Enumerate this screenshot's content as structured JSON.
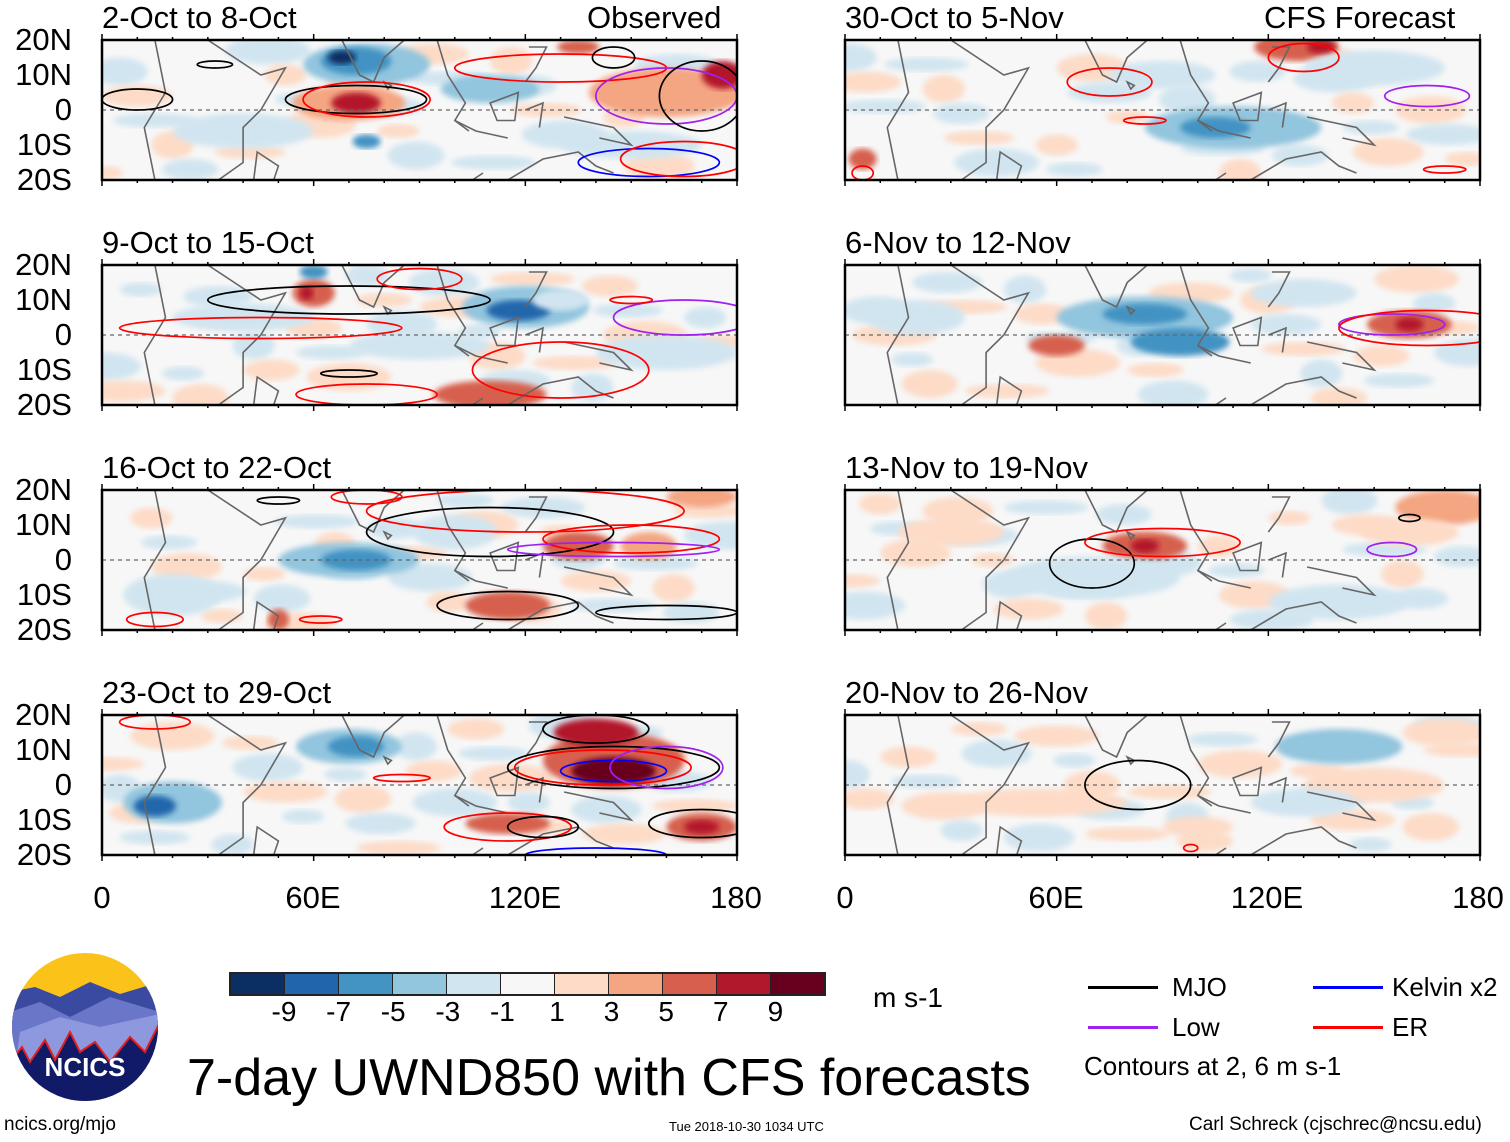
{
  "title": "7-day UWND850 with CFS forecasts",
  "units": "m s-1",
  "left_header": "Observed",
  "right_header": "CFS Forecast",
  "contour_note": "Contours at 2, 6 m s-1",
  "footer": {
    "left": "ncics.org/mjo",
    "center": "Tue 2018-10-30 1034 UTC",
    "right": "Carl Schreck (cjschrec@ncsu.edu)"
  },
  "logo_text": "NCICS",
  "legend": [
    {
      "label": "MJO",
      "color": "#000000"
    },
    {
      "label": "Kelvin x2",
      "color": "#0000ff"
    },
    {
      "label": "Low",
      "color": "#a020f0"
    },
    {
      "label": "ER",
      "color": "#ff0000"
    }
  ],
  "colorbar": {
    "colors": [
      "#0b2f62",
      "#2166ac",
      "#4393c3",
      "#92c5de",
      "#d1e5f0",
      "#f7f7f7",
      "#fddbc7",
      "#f4a582",
      "#d6604d",
      "#b2182b",
      "#67001f"
    ],
    "labels": [
      "-9",
      "-7",
      "-5",
      "-3",
      "-1",
      "1",
      "3",
      "5",
      "7",
      "9"
    ]
  },
  "chart_data": {
    "type": "heatmap",
    "variable": "850-hPa zonal wind anomaly (7-day mean)",
    "x_ticks": [
      "0",
      "60E",
      "120E",
      "180"
    ],
    "y_ticks": [
      "20N",
      "10N",
      "0",
      "10S",
      "20S"
    ],
    "xlim": [
      0,
      180
    ],
    "ylim": [
      -20,
      20
    ],
    "panels": [
      {
        "title": "2-Oct to 8-Oct",
        "source": "Observed"
      },
      {
        "title": "9-Oct to 15-Oct",
        "source": "Observed"
      },
      {
        "title": "16-Oct to 22-Oct",
        "source": "Observed"
      },
      {
        "title": "23-Oct to 29-Oct",
        "source": "Observed"
      },
      {
        "title": "30-Oct to 5-Nov",
        "source": "CFS Forecast"
      },
      {
        "title": "6-Nov to 12-Nov",
        "source": "CFS Forecast"
      },
      {
        "title": "13-Nov to 19-Nov",
        "source": "CFS Forecast"
      },
      {
        "title": "20-Nov to 26-Nov",
        "source": "CFS Forecast"
      }
    ]
  }
}
